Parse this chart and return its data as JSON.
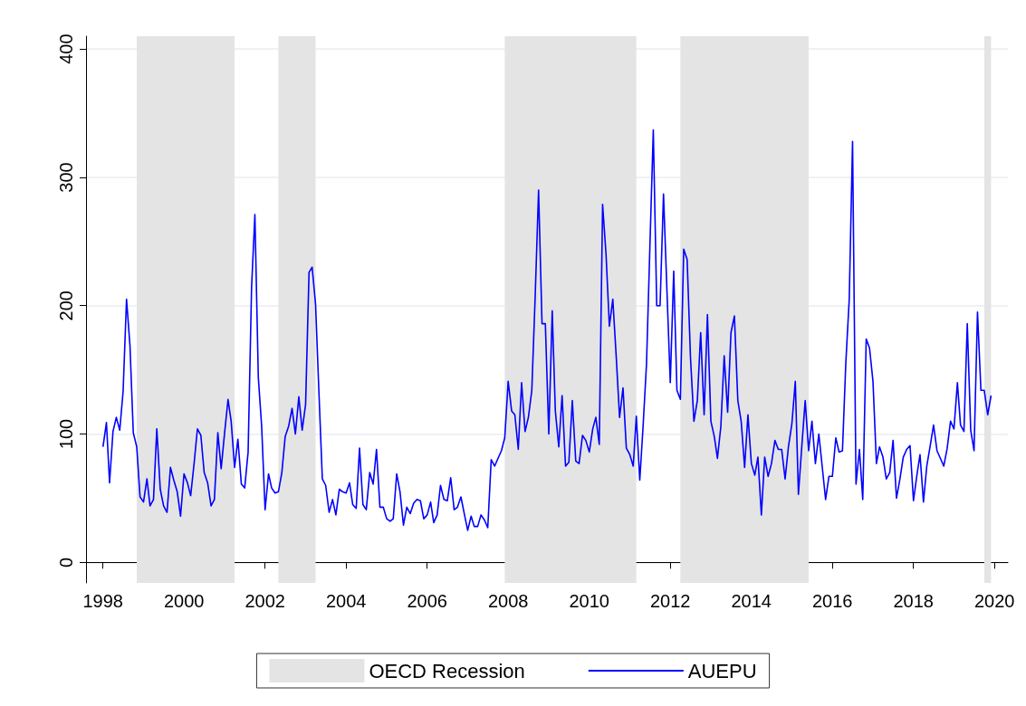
{
  "chart_data": {
    "type": "line",
    "x": [
      "1998-01",
      "1998-02",
      "1998-03",
      "1998-04",
      "1998-05",
      "1998-06",
      "1998-07",
      "1998-08",
      "1998-09",
      "1998-10",
      "1998-11",
      "1998-12",
      "1999-01",
      "1999-02",
      "1999-03",
      "1999-04",
      "1999-05",
      "1999-06",
      "1999-07",
      "1999-08",
      "1999-09",
      "1999-10",
      "1999-11",
      "1999-12",
      "2000-01",
      "2000-02",
      "2000-03",
      "2000-04",
      "2000-05",
      "2000-06",
      "2000-07",
      "2000-08",
      "2000-09",
      "2000-10",
      "2000-11",
      "2000-12",
      "2001-01",
      "2001-02",
      "2001-03",
      "2001-04",
      "2001-05",
      "2001-06",
      "2001-07",
      "2001-08",
      "2001-09",
      "2001-10",
      "2001-11",
      "2001-12",
      "2002-01",
      "2002-02",
      "2002-03",
      "2002-04",
      "2002-05",
      "2002-06",
      "2002-07",
      "2002-08",
      "2002-09",
      "2002-10",
      "2002-11",
      "2002-12",
      "2003-01",
      "2003-02",
      "2003-03",
      "2003-04",
      "2003-05",
      "2003-06",
      "2003-07",
      "2003-08",
      "2003-09",
      "2003-10",
      "2003-11",
      "2003-12",
      "2004-01",
      "2004-02",
      "2004-03",
      "2004-04",
      "2004-05",
      "2004-06",
      "2004-07",
      "2004-08",
      "2004-09",
      "2004-10",
      "2004-11",
      "2004-12",
      "2005-01",
      "2005-02",
      "2005-03",
      "2005-04",
      "2005-05",
      "2005-06",
      "2005-07",
      "2005-08",
      "2005-09",
      "2005-10",
      "2005-11",
      "2005-12",
      "2006-01",
      "2006-02",
      "2006-03",
      "2006-04",
      "2006-05",
      "2006-06",
      "2006-07",
      "2006-08",
      "2006-09",
      "2006-10",
      "2006-11",
      "2006-12",
      "2007-01",
      "2007-02",
      "2007-03",
      "2007-04",
      "2007-05",
      "2007-06",
      "2007-07",
      "2007-08",
      "2007-09",
      "2007-10",
      "2007-11",
      "2007-12",
      "2008-01",
      "2008-02",
      "2008-03",
      "2008-04",
      "2008-05",
      "2008-06",
      "2008-07",
      "2008-08",
      "2008-09",
      "2008-10",
      "2008-11",
      "2008-12",
      "2009-01",
      "2009-02",
      "2009-03",
      "2009-04",
      "2009-05",
      "2009-06",
      "2009-07",
      "2009-08",
      "2009-09",
      "2009-10",
      "2009-11",
      "2009-12",
      "2010-01",
      "2010-02",
      "2010-03",
      "2010-04",
      "2010-05",
      "2010-06",
      "2010-07",
      "2010-08",
      "2010-09",
      "2010-10",
      "2010-11",
      "2010-12",
      "2011-01",
      "2011-02",
      "2011-03",
      "2011-04",
      "2011-05",
      "2011-06",
      "2011-07",
      "2011-08",
      "2011-09",
      "2011-10",
      "2011-11",
      "2011-12",
      "2012-01",
      "2012-02",
      "2012-03",
      "2012-04",
      "2012-05",
      "2012-06",
      "2012-07",
      "2012-08",
      "2012-09",
      "2012-10",
      "2012-11",
      "2012-12",
      "2013-01",
      "2013-02",
      "2013-03",
      "2013-04",
      "2013-05",
      "2013-06",
      "2013-07",
      "2013-08",
      "2013-09",
      "2013-10",
      "2013-11",
      "2013-12",
      "2014-01",
      "2014-02",
      "2014-03",
      "2014-04",
      "2014-05",
      "2014-06",
      "2014-07",
      "2014-08",
      "2014-09",
      "2014-10",
      "2014-11",
      "2014-12",
      "2015-01",
      "2015-02",
      "2015-03",
      "2015-04",
      "2015-05",
      "2015-06",
      "2015-07",
      "2015-08",
      "2015-09",
      "2015-10",
      "2015-11",
      "2015-12",
      "2016-01",
      "2016-02",
      "2016-03",
      "2016-04",
      "2016-05",
      "2016-06",
      "2016-07",
      "2016-08",
      "2016-09",
      "2016-10",
      "2016-11",
      "2016-12",
      "2017-01",
      "2017-02",
      "2017-03",
      "2017-04",
      "2017-05",
      "2017-06",
      "2017-07",
      "2017-08",
      "2017-09",
      "2017-10",
      "2017-11",
      "2017-12",
      "2018-01",
      "2018-02",
      "2018-03",
      "2018-04",
      "2018-05",
      "2018-06",
      "2018-07",
      "2018-08",
      "2018-09",
      "2018-10",
      "2018-11",
      "2018-12",
      "2019-01",
      "2019-02",
      "2019-03",
      "2019-04",
      "2019-05",
      "2019-06",
      "2019-07",
      "2019-08",
      "2019-09",
      "2019-10",
      "2019-11",
      "2019-12"
    ],
    "series": [
      {
        "name": "AUEPU",
        "color": "#0000ff",
        "values": [
          90,
          109,
          62,
          102,
          113,
          103,
          133,
          205,
          169,
          101,
          90,
          51,
          47,
          65,
          44,
          49,
          104,
          57,
          44,
          39,
          74,
          64,
          55,
          36,
          69,
          62,
          52,
          77,
          104,
          99,
          70,
          62,
          44,
          49,
          101,
          73,
          101,
          127,
          110,
          74,
          96,
          61,
          58,
          86,
          214,
          271,
          144,
          106,
          41,
          69,
          58,
          54,
          55,
          70,
          98,
          106,
          120,
          100,
          129,
          103,
          123,
          226,
          230,
          201,
          133,
          65,
          60,
          39,
          49,
          37,
          57,
          55,
          54,
          62,
          45,
          42,
          89,
          45,
          41,
          70,
          61,
          88,
          43,
          43,
          34,
          32,
          34,
          69,
          55,
          29,
          43,
          38,
          46,
          49,
          48,
          34,
          37,
          47,
          31,
          37,
          60,
          49,
          48,
          66,
          41,
          43,
          51,
          38,
          25,
          36,
          28,
          28,
          37,
          33,
          27,
          80,
          75,
          81,
          87,
          97,
          141,
          118,
          115,
          88,
          140,
          102,
          113,
          134,
          209,
          290,
          186,
          186,
          100,
          196,
          118,
          90,
          130,
          75,
          78,
          126,
          79,
          77,
          99,
          95,
          86,
          104,
          113,
          92,
          279,
          240,
          184,
          205,
          160,
          113,
          136,
          89,
          84,
          75,
          114,
          64,
          106,
          155,
          245,
          337,
          200,
          200,
          287,
          214,
          140,
          227,
          134,
          127,
          244,
          236,
          160,
          110,
          126,
          179,
          115,
          193,
          110,
          98,
          81,
          106,
          161,
          117,
          179,
          192,
          126,
          110,
          74,
          115,
          77,
          68,
          82,
          37,
          82,
          67,
          77,
          95,
          88,
          88,
          65,
          90,
          108,
          141,
          53,
          91,
          126,
          87,
          110,
          77,
          100,
          75,
          49,
          67,
          67,
          97,
          86,
          87,
          155,
          205,
          328,
          61,
          88,
          49,
          174,
          167,
          141,
          77,
          90,
          82,
          65,
          70,
          95,
          50,
          65,
          82,
          88,
          91,
          48,
          68,
          84,
          47,
          75,
          91,
          107,
          87,
          81,
          75,
          89,
          110,
          104,
          140,
          107,
          102,
          186,
          103,
          87,
          195,
          134,
          134,
          115,
          130
        ]
      }
    ],
    "bands": [
      {
        "axis": "x",
        "from": "1998-11",
        "to": "2001-04",
        "label": "OECD Recession",
        "color": "#e4e4e4"
      },
      {
        "axis": "x",
        "from": "2002-05",
        "to": "2003-04",
        "color": "#e4e4e4"
      },
      {
        "axis": "x",
        "from": "2007-12",
        "to": "2011-03",
        "color": "#e4e4e4"
      },
      {
        "axis": "x",
        "from": "2012-04",
        "to": "2015-06",
        "color": "#e4e4e4"
      },
      {
        "axis": "x",
        "from": "2019-10",
        "to": "2019-12",
        "color": "#e4e4e4"
      }
    ],
    "xlim": [
      "1997-08",
      "2020-05"
    ],
    "xticks": [
      "1998",
      "2000",
      "2002",
      "2004",
      "2006",
      "2008",
      "2010",
      "2012",
      "2014",
      "2016",
      "2018",
      "2020"
    ],
    "ylim": [
      -16,
      410
    ],
    "yticks": [
      0,
      100,
      200,
      300,
      400
    ],
    "grid": "y",
    "legend": "bottom",
    "line_style": "solid",
    "marker": "none"
  }
}
